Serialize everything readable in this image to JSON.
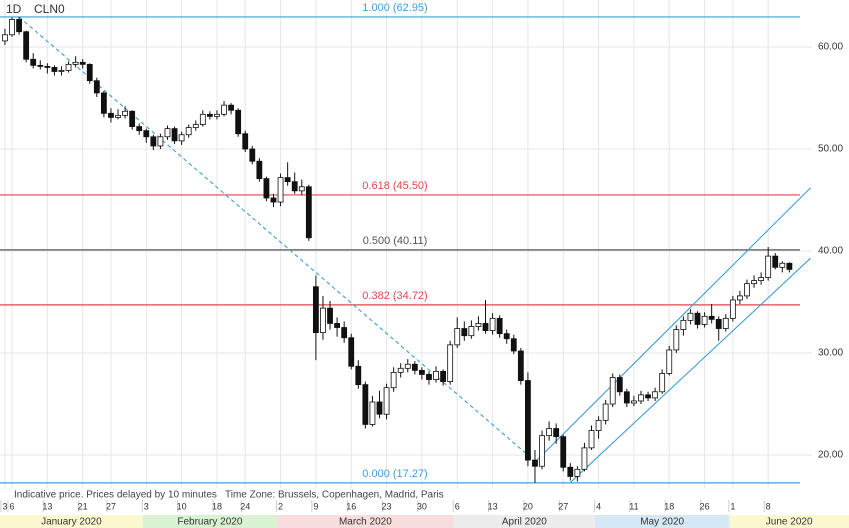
{
  "chart_data": {
    "type": "candlestick",
    "timeframe": "1D",
    "symbol": "CLN0",
    "footer": "Indicative price. Prices delayed by 10 minutes   Time Zone: Brussels, Copenhagen, Madrid, Paris",
    "ylim": [
      14.61,
      64.61
    ],
    "xlim": [
      -0.7,
      114.2
    ],
    "yticks": [
      {
        "value": 20,
        "label": "20.00"
      },
      {
        "value": 30,
        "label": "30.00"
      },
      {
        "value": 40,
        "label": "40.00"
      },
      {
        "value": 50,
        "label": "50.00"
      },
      {
        "value": 60,
        "label": "60.00"
      }
    ],
    "xticks": [
      {
        "value": 0,
        "label": "3"
      },
      {
        "value": 1,
        "label": "6"
      },
      {
        "value": 6,
        "label": "13"
      },
      {
        "value": 11,
        "label": "21"
      },
      {
        "value": 15,
        "label": "27"
      },
      {
        "value": 20,
        "label": "3"
      },
      {
        "value": 25,
        "label": "10"
      },
      {
        "value": 30,
        "label": "18"
      },
      {
        "value": 34,
        "label": "24"
      },
      {
        "value": 39,
        "label": "2"
      },
      {
        "value": 44,
        "label": "9"
      },
      {
        "value": 49,
        "label": "16"
      },
      {
        "value": 54,
        "label": "23"
      },
      {
        "value": 59,
        "label": "30"
      },
      {
        "value": 64,
        "label": "6"
      },
      {
        "value": 69,
        "label": "13"
      },
      {
        "value": 74,
        "label": "20"
      },
      {
        "value": 79,
        "label": "27"
      },
      {
        "value": 84,
        "label": "4"
      },
      {
        "value": 89,
        "label": "11"
      },
      {
        "value": 94,
        "label": "18"
      },
      {
        "value": 99,
        "label": "26"
      },
      {
        "value": 103,
        "label": "1"
      },
      {
        "value": 108,
        "label": "8"
      }
    ],
    "months": [
      {
        "label": "January 2020",
        "start": -0.7,
        "color": "#fbf8cf"
      },
      {
        "label": "February 2020",
        "start": 19.5,
        "color": "#d9f2d2"
      },
      {
        "label": "March 2020",
        "start": 38.5,
        "color": "#f9dcdc"
      },
      {
        "label": "April 2020",
        "start": 63.5,
        "color": "#ececec"
      },
      {
        "label": "May 2020",
        "start": 83.5,
        "color": "#d6e8f6"
      },
      {
        "label": "June 2020",
        "start": 102.5,
        "color": "#fbf8cf"
      }
    ],
    "grid": true,
    "up_color": "#ffffff",
    "down_color": "#111111",
    "fib_levels": [
      {
        "label": "1.000 (62.95)",
        "value": 62.95,
        "color": "#3f9fd4"
      },
      {
        "label": "0.618 (45.50)",
        "value": 45.5,
        "color": "#e0474c"
      },
      {
        "label": "0.500 (40.11)",
        "value": 40.11,
        "color": "#555555"
      },
      {
        "label": "0.382 (34.72)",
        "value": 34.72,
        "color": "#e0474c"
      },
      {
        "label": "0.000 (17.27)",
        "value": 17.27,
        "color": "#3f9fd4"
      }
    ],
    "lines": [
      {
        "points": [
          [
            2,
            62.95
          ],
          [
            75,
            19.4
          ]
        ],
        "dashed": true,
        "color": "#3f9fd4"
      },
      {
        "points": [
          [
            75,
            19.3
          ],
          [
            114,
            46.2
          ]
        ],
        "dashed": false,
        "color": "#3f9fd4"
      },
      {
        "points": [
          [
            80,
            17.3
          ],
          [
            114,
            39.3
          ]
        ],
        "dashed": false,
        "color": "#3f9fd4"
      }
    ],
    "candles": [
      [
        60.6,
        61.8,
        60.2,
        61.2
      ],
      [
        61.2,
        62.9,
        61.0,
        62.7
      ],
      [
        62.7,
        62.95,
        61.2,
        61.5
      ],
      [
        61.5,
        61.6,
        58.5,
        58.8
      ],
      [
        58.8,
        59.4,
        57.9,
        58.2
      ],
      [
        58.2,
        58.7,
        57.8,
        58.1
      ],
      [
        58.1,
        58.4,
        57.4,
        58.0
      ],
      [
        58.0,
        58.2,
        57.2,
        57.6
      ],
      [
        57.6,
        58.1,
        57.2,
        57.7
      ],
      [
        57.7,
        58.6,
        57.5,
        58.3
      ],
      [
        58.3,
        59.1,
        58.0,
        58.5
      ],
      [
        58.5,
        58.8,
        57.9,
        58.3
      ],
      [
        58.3,
        58.4,
        56.4,
        56.7
      ],
      [
        56.7,
        57.0,
        55.1,
        55.5
      ],
      [
        55.5,
        55.7,
        53.1,
        53.5
      ],
      [
        53.5,
        54.0,
        52.6,
        53.1
      ],
      [
        53.1,
        53.9,
        52.9,
        53.3
      ],
      [
        53.3,
        54.2,
        53.0,
        53.7
      ],
      [
        53.7,
        53.8,
        51.9,
        52.2
      ],
      [
        52.2,
        52.5,
        51.4,
        51.8
      ],
      [
        51.8,
        52.0,
        50.6,
        51.2
      ],
      [
        51.2,
        51.4,
        49.9,
        50.3
      ],
      [
        50.3,
        51.5,
        50.0,
        51.2
      ],
      [
        51.2,
        52.3,
        50.9,
        52.0
      ],
      [
        52.0,
        52.2,
        50.5,
        50.8
      ],
      [
        50.8,
        51.7,
        50.4,
        51.4
      ],
      [
        51.4,
        52.4,
        51.1,
        52.1
      ],
      [
        52.1,
        52.8,
        51.8,
        52.4
      ],
      [
        52.4,
        53.8,
        52.2,
        53.4
      ],
      [
        53.4,
        53.7,
        52.9,
        53.2
      ],
      [
        53.2,
        53.8,
        52.9,
        53.4
      ],
      [
        53.4,
        54.7,
        53.2,
        54.3
      ],
      [
        54.3,
        54.5,
        53.4,
        53.8
      ],
      [
        53.8,
        54.0,
        51.2,
        51.5
      ],
      [
        51.5,
        51.8,
        49.7,
        50.0
      ],
      [
        50.0,
        50.3,
        48.5,
        48.8
      ],
      [
        48.8,
        49.1,
        46.8,
        47.1
      ],
      [
        47.1,
        47.3,
        44.9,
        45.2
      ],
      [
        45.2,
        45.6,
        44.3,
        44.8
      ],
      [
        44.8,
        47.6,
        44.4,
        47.2
      ],
      [
        47.2,
        48.7,
        46.4,
        46.8
      ],
      [
        46.8,
        47.7,
        45.6,
        45.9
      ],
      [
        45.9,
        47.0,
        45.5,
        46.3
      ],
      [
        46.3,
        46.5,
        41.0,
        41.3
      ],
      [
        36.5,
        37.6,
        29.3,
        32.0
      ],
      [
        32.0,
        35.6,
        31.3,
        34.4
      ],
      [
        34.4,
        35.1,
        32.3,
        32.9
      ],
      [
        32.9,
        33.5,
        31.6,
        32.5
      ],
      [
        32.5,
        33.1,
        31.0,
        31.5
      ],
      [
        31.5,
        31.9,
        28.4,
        28.7
      ],
      [
        28.7,
        29.3,
        26.5,
        26.9
      ],
      [
        26.9,
        27.2,
        22.6,
        23.0
      ],
      [
        23.0,
        25.8,
        22.8,
        25.2
      ],
      [
        25.2,
        26.3,
        23.6,
        24.0
      ],
      [
        24.0,
        27.0,
        23.5,
        26.6
      ],
      [
        26.6,
        28.6,
        26.2,
        28.1
      ],
      [
        28.1,
        29.0,
        27.6,
        28.5
      ],
      [
        28.5,
        29.4,
        28.1,
        28.9
      ],
      [
        28.9,
        29.2,
        27.9,
        28.3
      ],
      [
        28.3,
        28.6,
        27.4,
        27.9
      ],
      [
        27.9,
        28.2,
        26.9,
        27.4
      ],
      [
        27.4,
        28.7,
        27.1,
        28.2
      ],
      [
        28.2,
        28.4,
        26.8,
        27.2
      ],
      [
        27.2,
        31.2,
        26.9,
        30.8
      ],
      [
        30.8,
        33.5,
        30.5,
        32.4
      ],
      [
        32.4,
        33.1,
        31.2,
        31.7
      ],
      [
        31.7,
        33.2,
        31.4,
        32.6
      ],
      [
        32.6,
        33.6,
        32.2,
        32.9
      ],
      [
        32.9,
        35.2,
        31.9,
        32.2
      ],
      [
        32.2,
        33.9,
        31.8,
        33.4
      ],
      [
        33.4,
        33.7,
        31.5,
        31.9
      ],
      [
        31.9,
        32.3,
        30.9,
        31.4
      ],
      [
        31.4,
        31.8,
        29.9,
        30.2
      ],
      [
        30.2,
        30.5,
        26.9,
        27.3
      ],
      [
        27.3,
        28.1,
        18.9,
        19.5
      ],
      [
        19.5,
        20.5,
        17.27,
        18.9
      ],
      [
        18.9,
        22.4,
        18.6,
        21.9
      ],
      [
        21.9,
        23.3,
        21.4,
        22.6
      ],
      [
        22.6,
        23.1,
        21.1,
        21.8
      ],
      [
        21.8,
        22.0,
        18.4,
        18.8
      ],
      [
        18.8,
        19.2,
        17.5,
        17.9
      ],
      [
        17.9,
        18.9,
        17.4,
        18.6
      ],
      [
        18.6,
        21.2,
        18.4,
        20.7
      ],
      [
        20.7,
        22.9,
        20.5,
        22.4
      ],
      [
        22.4,
        23.8,
        21.6,
        23.4
      ],
      [
        23.4,
        25.4,
        23.0,
        25.0
      ],
      [
        25.0,
        28.0,
        24.7,
        27.6
      ],
      [
        27.6,
        27.9,
        25.8,
        26.2
      ],
      [
        26.2,
        26.5,
        24.7,
        25.1
      ],
      [
        25.1,
        25.8,
        24.8,
        25.3
      ],
      [
        25.3,
        26.3,
        25.0,
        25.9
      ],
      [
        25.9,
        26.2,
        25.3,
        25.6
      ],
      [
        25.6,
        26.6,
        25.3,
        26.2
      ],
      [
        26.2,
        28.4,
        26.0,
        28.0
      ],
      [
        28.0,
        30.7,
        27.8,
        30.3
      ],
      [
        30.3,
        32.7,
        30.0,
        32.3
      ],
      [
        32.3,
        33.6,
        31.7,
        33.2
      ],
      [
        33.2,
        34.3,
        32.8,
        33.9
      ],
      [
        33.9,
        34.1,
        32.4,
        32.8
      ],
      [
        32.8,
        34.0,
        32.5,
        33.6
      ],
      [
        33.6,
        34.8,
        32.9,
        33.3
      ],
      [
        33.3,
        33.6,
        31.2,
        32.4
      ],
      [
        32.4,
        33.8,
        32.1,
        33.4
      ],
      [
        33.4,
        35.6,
        33.1,
        35.2
      ],
      [
        35.2,
        36.1,
        34.8,
        35.6
      ],
      [
        35.6,
        37.2,
        35.3,
        36.8
      ],
      [
        36.8,
        37.6,
        36.4,
        37.1
      ],
      [
        37.1,
        37.9,
        36.7,
        37.4
      ],
      [
        37.4,
        40.4,
        37.1,
        39.5
      ],
      [
        39.5,
        39.8,
        38.2,
        38.4
      ],
      [
        38.4,
        39.0,
        37.9,
        38.8
      ],
      [
        38.8,
        38.9,
        37.9,
        38.2
      ]
    ]
  }
}
